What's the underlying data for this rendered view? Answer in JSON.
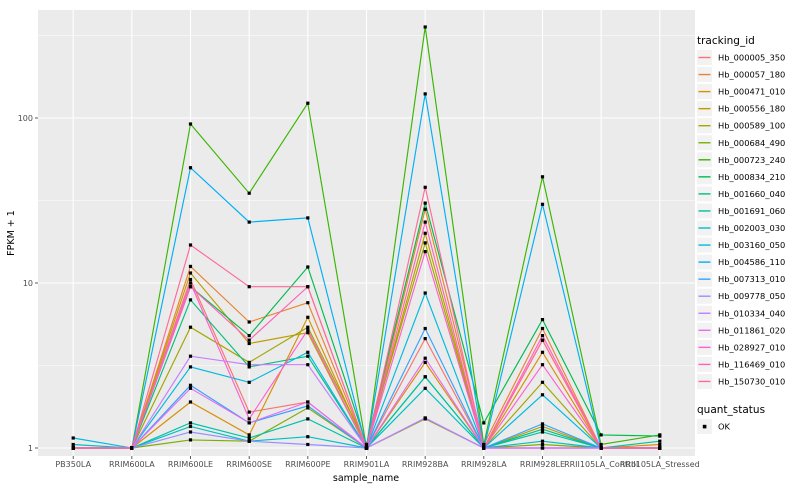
{
  "chart": {
    "panel_bg": "#EBEBEB",
    "grid_color": "#FFFFFF",
    "tick_color": "#333333",
    "axis_text_color": "#4D4D4D",
    "legend_key_bg": "#F2F2F2",
    "point_color": "#000000"
  },
  "chart_data": {
    "type": "line",
    "title": "",
    "xlabel": "sample_name",
    "ylabel": "FPKM + 1",
    "y_scale": "log10",
    "y_ticks": [
      1,
      10,
      100
    ],
    "ylim": [
      0.9,
      450
    ],
    "grid": true,
    "legend_position": "right",
    "legend_title": "tracking_id",
    "quant_legend_title": "quant_status",
    "quant_status_label": "OK",
    "categories": [
      "PB350LA",
      "RRIM600LA",
      "RRIM600LE",
      "RRIM600SE",
      "RRIM600PE",
      "RRIM901LA",
      "RRIM928BA",
      "RRIM928LA",
      "RRIM928LE",
      "RRII105LA_Control",
      "RRII105LA_Stressed"
    ],
    "series": [
      {
        "name": "Hb_000005_350",
        "color": "#F8766D",
        "values": [
          1.0,
          1.0,
          10.5,
          1.65,
          1.9,
          1.0,
          4.6,
          1.0,
          4.5,
          1.0,
          1.0
        ]
      },
      {
        "name": "Hb_000057_180",
        "color": "#EA8331",
        "values": [
          1.0,
          1.0,
          12.6,
          5.8,
          7.6,
          1.0,
          28.0,
          1.05,
          5.3,
          1.0,
          1.0
        ]
      },
      {
        "name": "Hb_000471_010",
        "color": "#D89000",
        "values": [
          1.0,
          1.0,
          1.9,
          1.2,
          6.2,
          1.0,
          3.3,
          1.0,
          3.8,
          1.0,
          1.05
        ]
      },
      {
        "name": "Hb_000556_180",
        "color": "#C09B00",
        "values": [
          1.0,
          1.0,
          11.5,
          4.3,
          5.0,
          1.0,
          20.0,
          1.0,
          1.35,
          1.0,
          1.0
        ]
      },
      {
        "name": "Hb_000589_100",
        "color": "#A3A500",
        "values": [
          1.0,
          1.0,
          5.4,
          3.3,
          5.4,
          1.05,
          17.5,
          1.0,
          2.5,
          1.0,
          1.0
        ]
      },
      {
        "name": "Hb_000684_490",
        "color": "#7CAE00",
        "values": [
          1.0,
          1.0,
          1.12,
          1.1,
          1.75,
          1.0,
          1.5,
          1.0,
          1.05,
          1.0,
          1.0
        ]
      },
      {
        "name": "Hb_000723_240",
        "color": "#39B600",
        "values": [
          1.0,
          1.0,
          92.0,
          35.0,
          123.0,
          1.0,
          356.0,
          1.05,
          44.0,
          1.05,
          1.2
        ]
      },
      {
        "name": "Hb_000834_210",
        "color": "#00BB4E",
        "values": [
          1.0,
          1.0,
          9.5,
          4.8,
          12.5,
          1.05,
          30.5,
          1.42,
          6.0,
          1.2,
          1.18
        ]
      },
      {
        "name": "Hb_001660_040",
        "color": "#00BF7D",
        "values": [
          1.0,
          1.0,
          7.9,
          3.1,
          3.6,
          1.0,
          2.7,
          1.0,
          1.3,
          1.0,
          1.0
        ]
      },
      {
        "name": "Hb_001691_060",
        "color": "#00C1A3",
        "values": [
          1.0,
          1.0,
          1.42,
          1.15,
          1.5,
          1.0,
          2.7,
          1.0,
          1.25,
          1.0,
          1.1
        ]
      },
      {
        "name": "Hb_002003_030",
        "color": "#00BFC4",
        "values": [
          1.05,
          1.0,
          1.35,
          1.1,
          1.17,
          1.0,
          2.3,
          1.0,
          1.1,
          1.0,
          1.0
        ]
      },
      {
        "name": "Hb_003160_050",
        "color": "#00BAE0",
        "values": [
          1.15,
          1.0,
          3.1,
          2.5,
          3.8,
          1.0,
          8.7,
          1.0,
          2.1,
          1.0,
          1.0
        ]
      },
      {
        "name": "Hb_004586_110",
        "color": "#00B0F6",
        "values": [
          1.0,
          1.0,
          50.0,
          23.4,
          24.8,
          1.0,
          140.0,
          1.0,
          30.0,
          1.0,
          1.0
        ]
      },
      {
        "name": "Hb_007313_010",
        "color": "#35A2FF",
        "values": [
          1.0,
          1.0,
          2.4,
          1.42,
          1.8,
          1.0,
          5.3,
          1.0,
          1.4,
          1.0,
          1.0
        ]
      },
      {
        "name": "Hb_009778_050",
        "color": "#9590FF",
        "values": [
          1.0,
          1.0,
          1.25,
          1.1,
          1.05,
          1.0,
          1.52,
          1.0,
          1.0,
          1.0,
          1.0
        ]
      },
      {
        "name": "Hb_010334_040",
        "color": "#C77CFF",
        "values": [
          1.0,
          1.0,
          3.6,
          3.2,
          3.2,
          1.0,
          1.52,
          1.0,
          1.0,
          1.0,
          1.0
        ]
      },
      {
        "name": "Hb_011861_020",
        "color": "#E76BF3",
        "values": [
          1.0,
          1.0,
          2.3,
          1.42,
          1.9,
          1.0,
          3.5,
          1.0,
          1.0,
          1.0,
          1.0
        ]
      },
      {
        "name": "Hb_028927_010",
        "color": "#FD61D1",
        "values": [
          1.0,
          1.0,
          10.0,
          1.5,
          5.2,
          1.0,
          15.5,
          1.0,
          3.2,
          1.0,
          1.0
        ]
      },
      {
        "name": "Hb_116469_010",
        "color": "#FF62BC",
        "values": [
          1.0,
          1.0,
          9.5,
          4.5,
          9.5,
          1.0,
          23.4,
          1.0,
          4.8,
          1.0,
          1.0
        ]
      },
      {
        "name": "Hb_150730_010",
        "color": "#FF6A98",
        "values": [
          1.0,
          1.0,
          17.0,
          9.5,
          9.5,
          1.0,
          38.0,
          1.0,
          4.5,
          1.0,
          1.0
        ]
      }
    ]
  }
}
